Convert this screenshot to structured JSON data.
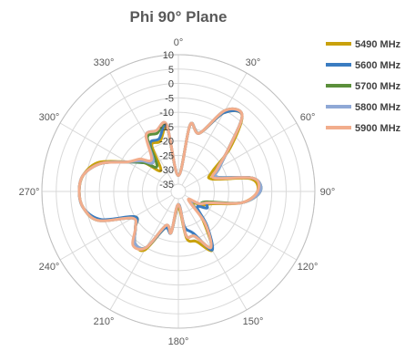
{
  "chart_data": {
    "type": "polar-line",
    "title": "Phi 90° Plane",
    "radial_axis": {
      "min": -35,
      "max": 10,
      "ticks": [
        10,
        5,
        0,
        -5,
        -10,
        -15,
        -20,
        -25,
        -30,
        -35
      ]
    },
    "angular_axis": {
      "step": 30,
      "direction": "clockwise",
      "zero": "top",
      "labels": [
        "0°",
        "30°",
        "60°",
        "90°",
        "120°",
        "150°",
        "180°",
        "210°",
        "240°",
        "270°",
        "300°",
        "330°"
      ]
    },
    "legend_position": "right",
    "angles_deg": [
      0,
      10,
      20,
      30,
      40,
      50,
      60,
      70,
      80,
      90,
      100,
      110,
      120,
      130,
      140,
      150,
      160,
      170,
      180,
      190,
      200,
      210,
      220,
      230,
      240,
      250,
      260,
      270,
      280,
      290,
      300,
      310,
      320,
      330,
      340,
      350
    ],
    "series": [
      {
        "name": "5490 MHz",
        "color": "#c9a10c",
        "values": [
          -32,
          -14,
          -16,
          -6,
          -3,
          -14,
          -24,
          -25,
          -12,
          -10,
          -15,
          -25,
          -28,
          -31,
          -24,
          -14,
          -19,
          -21,
          -32,
          -23,
          -24,
          -14,
          -14,
          -18,
          -20,
          -8,
          -4,
          -3,
          -4,
          -8,
          -17,
          -22,
          -28,
          -19,
          -19,
          -15
        ]
      },
      {
        "name": "5600 MHz",
        "color": "#3a7cc1",
        "values": [
          -32,
          -14,
          -16,
          -6,
          -3,
          -15,
          -22,
          -23,
          -11,
          -9,
          -15,
          -26,
          -26,
          -29,
          -22,
          -14,
          -22,
          -25,
          -33,
          -23,
          -24,
          -15,
          -14,
          -18,
          -20,
          -9,
          -4,
          -3,
          -4,
          -9,
          -17,
          -22,
          -24,
          -18,
          -18,
          -14
        ]
      },
      {
        "name": "5700 MHz",
        "color": "#5b8f3b",
        "values": [
          -32,
          -14,
          -16,
          -5,
          -3,
          -15,
          -21,
          -23,
          -11,
          -9,
          -15,
          -27,
          -29,
          -32,
          -23,
          -15,
          -21,
          -22,
          -33,
          -23,
          -25,
          -15,
          -14,
          -18,
          -19,
          -8,
          -4,
          -3,
          -4,
          -9,
          -17,
          -22,
          -26,
          -16,
          -16,
          -14
        ]
      },
      {
        "name": "5800 MHz",
        "color": "#8fa8d6",
        "values": [
          -32,
          -14,
          -16,
          -5,
          -3,
          -15,
          -21,
          -23,
          -11,
          -9,
          -15,
          -26,
          -29,
          -32,
          -23,
          -15,
          -21,
          -22,
          -33,
          -23,
          -25,
          -15,
          -14,
          -18,
          -19,
          -8,
          -4,
          -3,
          -4,
          -9,
          -17,
          -21,
          -24,
          -15,
          -15,
          -14
        ]
      },
      {
        "name": "5900 MHz",
        "color": "#f2ad8c",
        "values": [
          -32,
          -14,
          -16,
          -5,
          -3,
          -15,
          -22,
          -24,
          -11,
          -10,
          -15,
          -26,
          -29,
          -33,
          -23,
          -15,
          -21,
          -22,
          -33,
          -23,
          -25,
          -15,
          -13,
          -18,
          -19,
          -8,
          -4,
          -3,
          -4,
          -9,
          -17,
          -20,
          -23,
          -15,
          -15,
          -14
        ]
      }
    ]
  }
}
